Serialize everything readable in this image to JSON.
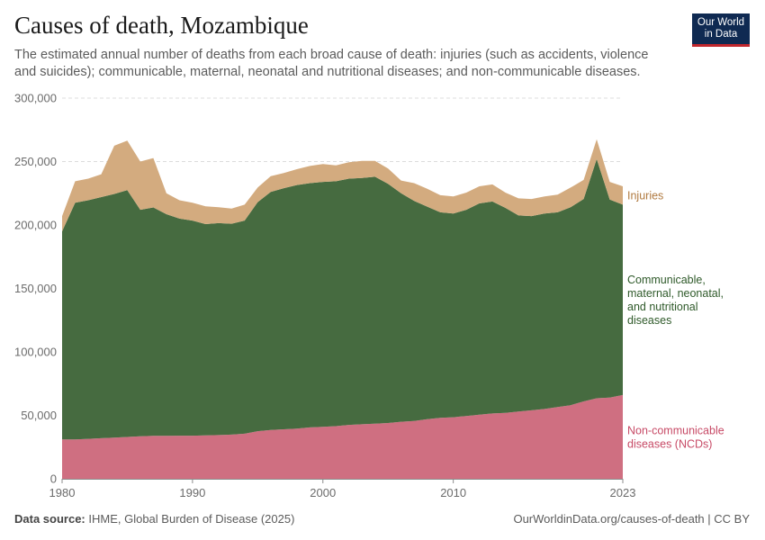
{
  "header": {
    "title": "Causes of death, Mozambique",
    "subtitle": "The estimated annual number of deaths from each broad cause of death: injuries (such as accidents, violence and suicides); communicable, maternal, neonatal and nutritional diseases; and non-communicable diseases.",
    "logo_line1": "Our World",
    "logo_line2": "in Data"
  },
  "footer": {
    "source_label": "Data source:",
    "source_text": "IHME, Global Burden of Disease (2025)",
    "url": "OurWorldinData.org/causes-of-death | CC BY"
  },
  "chart_data": {
    "type": "area",
    "stacked": true,
    "title": "Causes of death, Mozambique",
    "x": [
      1980,
      1981,
      1982,
      1983,
      1984,
      1985,
      1986,
      1987,
      1988,
      1989,
      1990,
      1991,
      1992,
      1993,
      1994,
      1995,
      1996,
      1997,
      1998,
      1999,
      2000,
      2001,
      2002,
      2003,
      2004,
      2005,
      2006,
      2007,
      2008,
      2009,
      2010,
      2011,
      2012,
      2013,
      2014,
      2015,
      2016,
      2017,
      2018,
      2019,
      2020,
      2021,
      2022,
      2023
    ],
    "xlim": [
      1980,
      2023
    ],
    "x_ticks": [
      "1980",
      "1990",
      "2000",
      "2010",
      "2023"
    ],
    "ylim": [
      0,
      300000
    ],
    "y_ticks": [
      "0",
      "50,000",
      "100,000",
      "150,000",
      "200,000",
      "250,000",
      "300,000"
    ],
    "grid": true,
    "series": [
      {
        "name": "Non-communicable diseases (NCDs)",
        "label_lines": [
          "Non-communicable",
          "diseases (NCDs)"
        ],
        "color": "#cf6f81",
        "label_color": "#c74a66",
        "values": [
          31000,
          31000,
          31500,
          32000,
          32500,
          33000,
          33500,
          33800,
          33800,
          34000,
          34000,
          34200,
          34500,
          34800,
          35500,
          37500,
          38500,
          39000,
          39500,
          40500,
          41000,
          41500,
          42500,
          43000,
          43500,
          44000,
          45000,
          45500,
          47000,
          48000,
          48500,
          49500,
          50500,
          51500,
          52000,
          53000,
          54000,
          55000,
          56500,
          58000,
          61000,
          63500,
          64000,
          66000
        ]
      },
      {
        "name": "Communicable, maternal, neonatal, and nutritional diseases",
        "label_lines": [
          "Communicable,",
          "maternal, neonatal,",
          "and nutritional",
          "diseases"
        ],
        "color": "#466b40",
        "label_color": "#2f5a2a",
        "values": [
          164000,
          186500,
          188000,
          190000,
          192000,
          194500,
          178500,
          180000,
          174700,
          171000,
          169500,
          166500,
          167000,
          166200,
          168000,
          180500,
          187500,
          190000,
          192000,
          192500,
          193000,
          193000,
          194000,
          194000,
          194500,
          188500,
          180000,
          173500,
          167500,
          162000,
          160500,
          162500,
          166500,
          167000,
          161500,
          154500,
          153000,
          154000,
          153500,
          156000,
          159500,
          188500,
          156000,
          150000
        ]
      },
      {
        "name": "Injuries",
        "label_lines": [
          "Injuries"
        ],
        "color": "#d3ab7f",
        "label_color": "#b07a40",
        "values": [
          12000,
          17000,
          17000,
          18000,
          38000,
          39000,
          38000,
          39000,
          16500,
          14500,
          14000,
          14000,
          12500,
          12000,
          12500,
          11500,
          12500,
          12000,
          12500,
          13500,
          14000,
          12500,
          13000,
          13500,
          12500,
          12000,
          10000,
          14000,
          14000,
          13500,
          13500,
          13500,
          13500,
          13500,
          12000,
          13500,
          13500,
          13500,
          14000,
          15500,
          15000,
          15500,
          14000,
          14500
        ]
      }
    ]
  }
}
